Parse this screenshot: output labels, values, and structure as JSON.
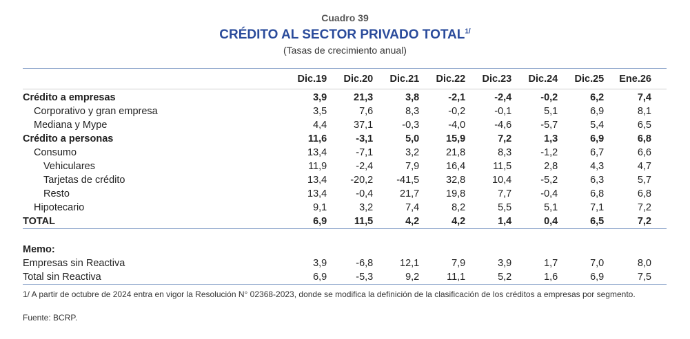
{
  "header": {
    "cuadro": "Cuadro 39",
    "title": "CRÉDITO AL SECTOR PRIVADO TOTAL",
    "title_note": "1/",
    "subtitle": "(Tasas de crecimiento anual)"
  },
  "columns": [
    "Dic.19",
    "Dic.20",
    "Dic.21",
    "Dic.22",
    "Dic.23",
    "Dic.24",
    "Dic.25",
    "Ene.26"
  ],
  "rows": [
    {
      "label": "Crédito a empresas",
      "values": [
        "3,9",
        "21,3",
        "3,8",
        "-2,1",
        "-2,4",
        "-0,2",
        "6,2",
        "7,4"
      ]
    },
    {
      "label": "Corporativo y gran empresa",
      "values": [
        "3,5",
        "7,6",
        "8,3",
        "-0,2",
        "-0,1",
        "5,1",
        "6,9",
        "8,1"
      ]
    },
    {
      "label": "Mediana y Mype",
      "values": [
        "4,4",
        "37,1",
        "-0,3",
        "-4,0",
        "-4,6",
        "-5,7",
        "5,4",
        "6,5"
      ]
    },
    {
      "label": "Crédito a personas",
      "values": [
        "11,6",
        "-3,1",
        "5,0",
        "15,9",
        "7,2",
        "1,3",
        "6,9",
        "6,8"
      ]
    },
    {
      "label": "Consumo",
      "values": [
        "13,4",
        "-7,1",
        "3,2",
        "21,8",
        "8,3",
        "-1,2",
        "6,7",
        "6,6"
      ]
    },
    {
      "label": "Vehiculares",
      "values": [
        "11,9",
        "-2,4",
        "7,9",
        "16,4",
        "11,5",
        "2,8",
        "4,3",
        "4,7"
      ]
    },
    {
      "label": "Tarjetas de crédito",
      "values": [
        "13,4",
        "-20,2",
        "-41,5",
        "32,8",
        "10,4",
        "-5,2",
        "6,3",
        "5,7"
      ]
    },
    {
      "label": "Resto",
      "values": [
        "13,4",
        "-0,4",
        "21,7",
        "19,8",
        "7,7",
        "-0,4",
        "6,8",
        "6,8"
      ]
    },
    {
      "label": "Hipotecario",
      "values": [
        "9,1",
        "3,2",
        "7,4",
        "8,2",
        "5,5",
        "5,1",
        "7,1",
        "7,2"
      ]
    },
    {
      "label": "TOTAL",
      "values": [
        "6,9",
        "11,5",
        "4,2",
        "4,2",
        "1,4",
        "0,4",
        "6,5",
        "7,2"
      ]
    }
  ],
  "memo": {
    "label": "Memo:",
    "rows": [
      {
        "label": "Empresas sin Reactiva",
        "values": [
          "3,9",
          "-6,8",
          "12,1",
          "7,9",
          "3,9",
          "1,7",
          "7,0",
          "8,0"
        ]
      },
      {
        "label": "Total sin Reactiva",
        "values": [
          "6,9",
          "-5,3",
          "9,2",
          "11,1",
          "5,2",
          "1,6",
          "6,9",
          "7,5"
        ]
      }
    ]
  },
  "footnotes": [
    "1/ A partir de octubre de 2024 entra en vigor la Resolución N° 02368-2023, donde se modifica la definición de la clasificación de los créditos a empresas por segmento.",
    "Fuente: BCRP."
  ]
}
